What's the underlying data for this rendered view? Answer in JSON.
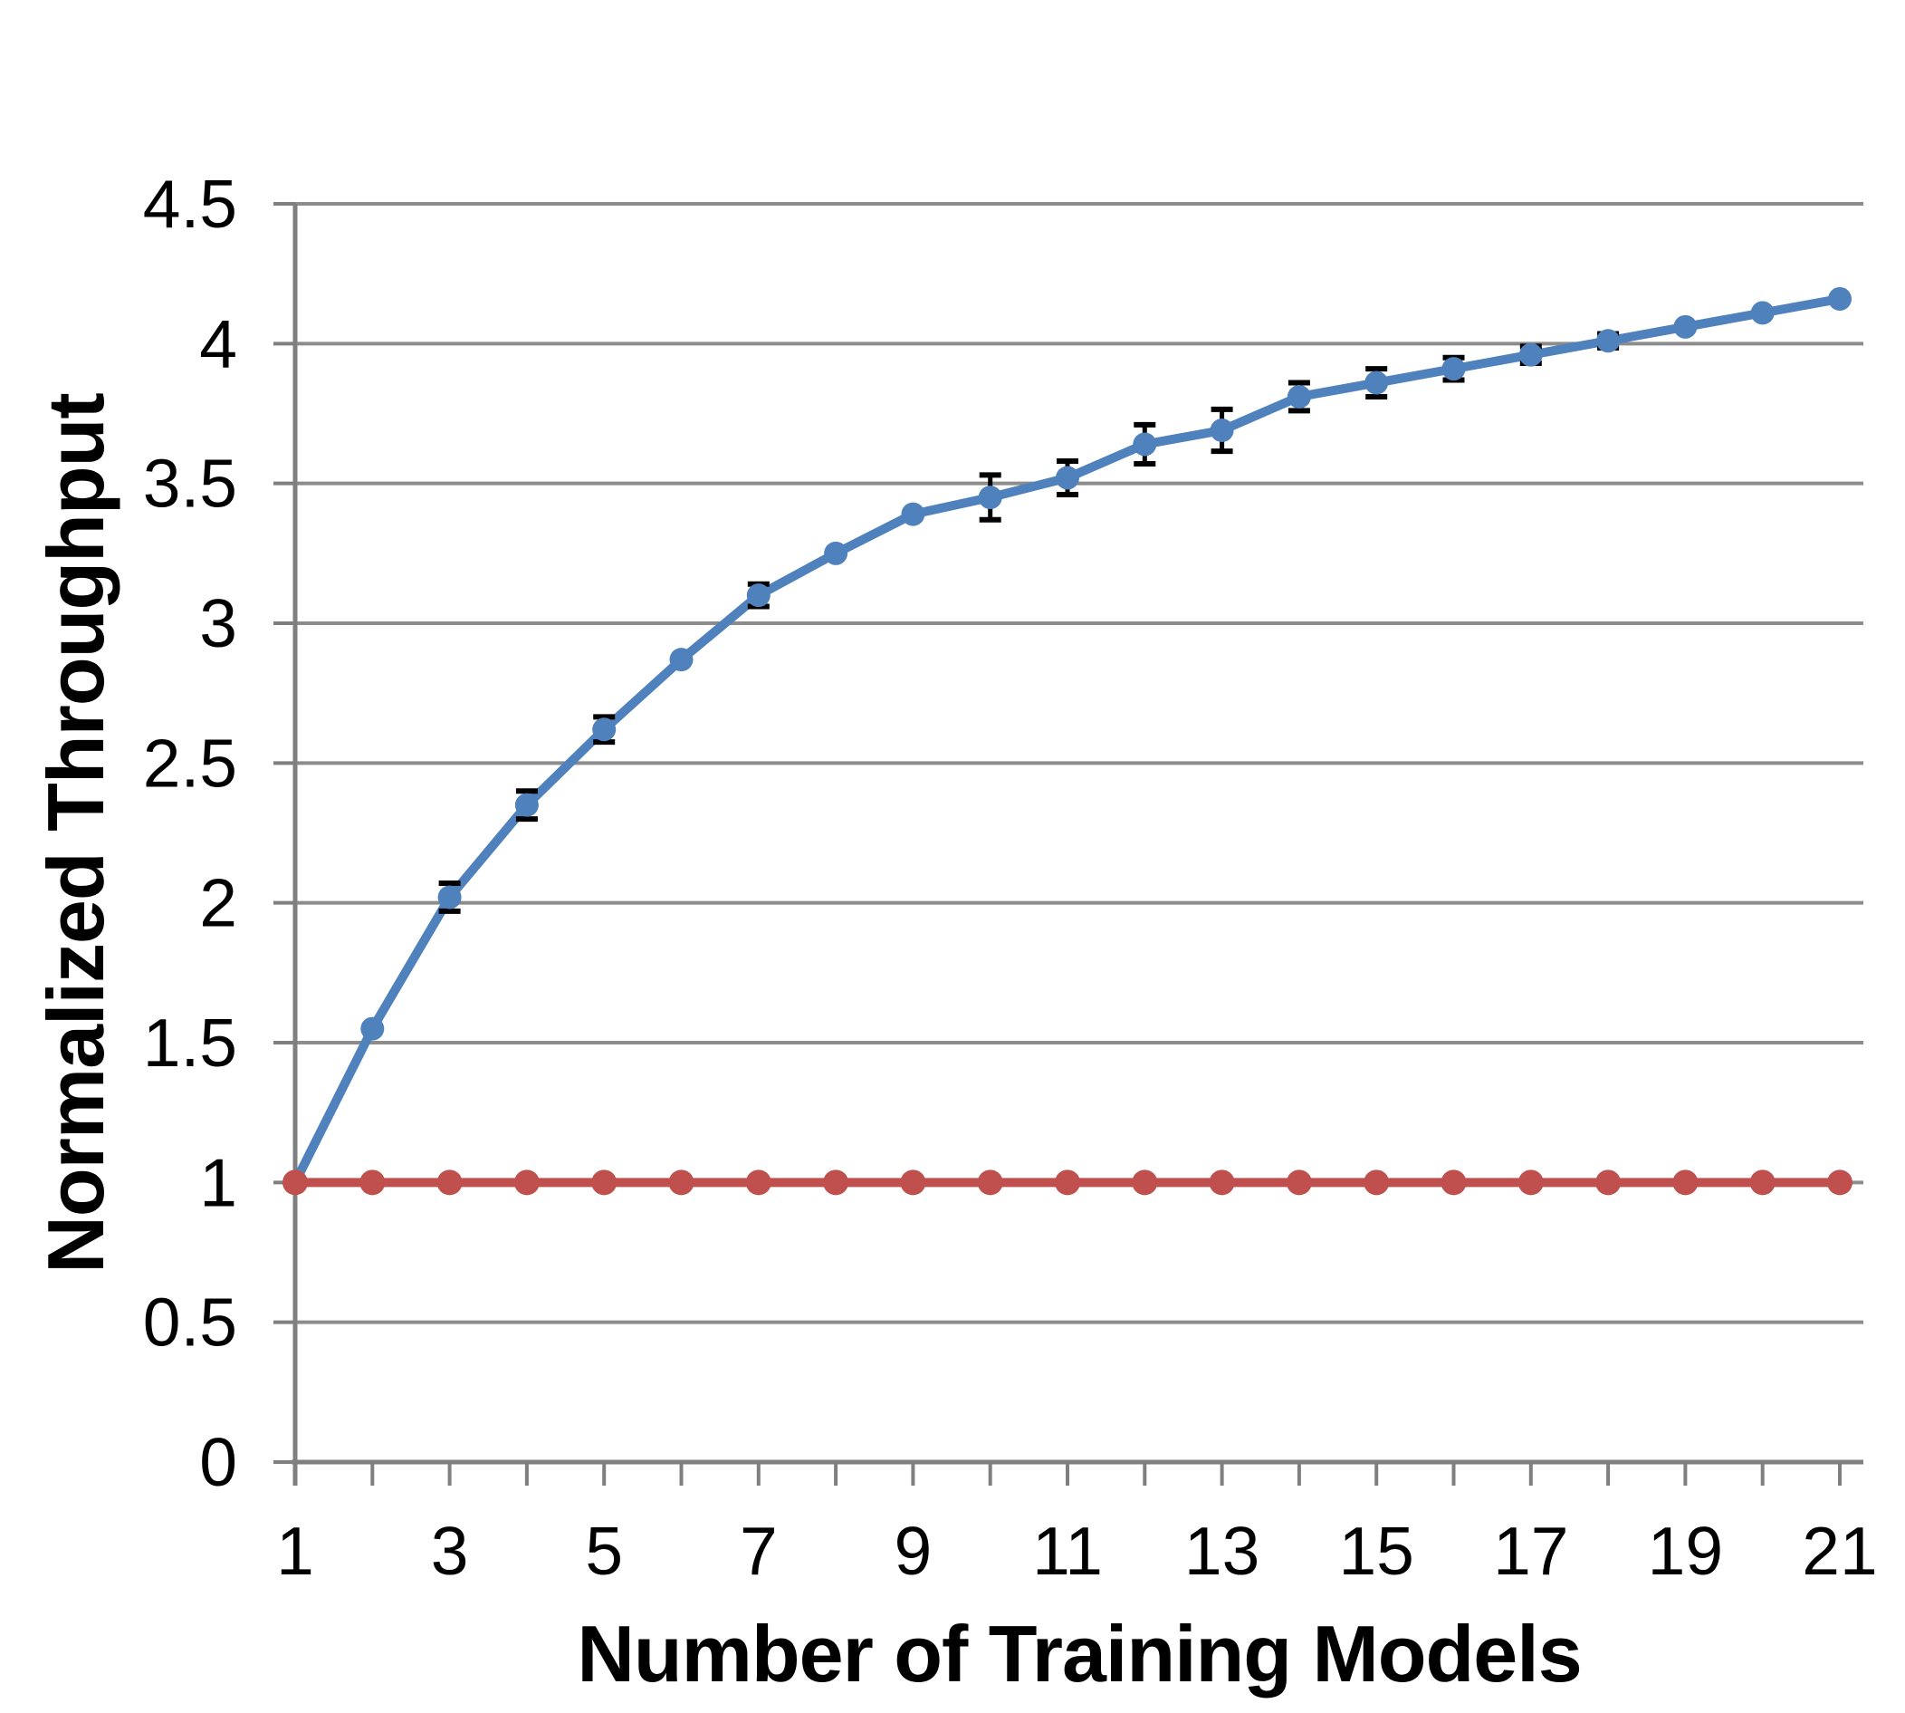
{
  "chart_data": {
    "type": "line",
    "title": "",
    "xlabel": "Number of Training Models",
    "ylabel": "Normalized Throughput",
    "x": [
      1,
      2,
      3,
      4,
      5,
      6,
      7,
      8,
      9,
      10,
      11,
      12,
      13,
      14,
      15,
      16,
      17,
      18,
      19,
      20,
      21
    ],
    "xtick_labeled": [
      1,
      3,
      5,
      7,
      9,
      11,
      13,
      15,
      17,
      19,
      21
    ],
    "xlim": [
      1,
      21
    ],
    "ylim": [
      0,
      4.5
    ],
    "ytick_step": 0.5,
    "grid": "horizontal",
    "legend_position": "none",
    "series": [
      {
        "id": "scaled-training-throughput",
        "color": "#4F81BD",
        "marker": "circle",
        "marker_radius": 13,
        "line_width": 10,
        "values": [
          1.0,
          1.55,
          2.02,
          2.35,
          2.62,
          2.87,
          3.1,
          3.25,
          3.39,
          3.45,
          3.52,
          3.64,
          3.69,
          3.81,
          3.86,
          3.91,
          3.96,
          4.01,
          4.06,
          4.11,
          4.16
        ],
        "error_bars": [
          0,
          0,
          0.05,
          0.05,
          0.045,
          0,
          0.04,
          0,
          0,
          0.08,
          0.06,
          0.07,
          0.075,
          0.05,
          0.05,
          0.04,
          0.03,
          0.025,
          0,
          0,
          0
        ]
      },
      {
        "id": "baseline-throughput",
        "color": "#C0504D",
        "marker": "circle",
        "marker_radius": 14,
        "line_width": 10,
        "values": [
          1,
          1,
          1,
          1,
          1,
          1,
          1,
          1,
          1,
          1,
          1,
          1,
          1,
          1,
          1,
          1,
          1,
          1,
          1,
          1,
          1
        ],
        "error_bars": [
          0,
          0,
          0,
          0,
          0,
          0,
          0,
          0,
          0,
          0,
          0,
          0,
          0,
          0,
          0,
          0,
          0,
          0,
          0,
          0,
          0
        ]
      }
    ],
    "colors": {
      "gridline": "#8C8C8C",
      "axis": "#7F7F7F",
      "error_bar": "#000000",
      "text": "#000000",
      "background": "#FFFFFF"
    }
  }
}
